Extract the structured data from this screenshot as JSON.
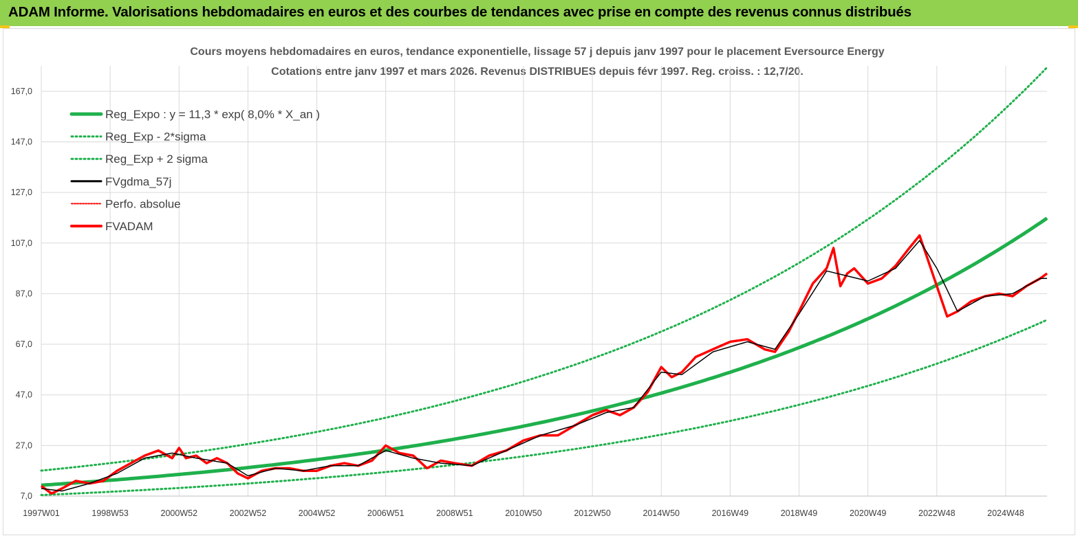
{
  "header": {
    "banner_title": "ADAM Informe. Valorisations hebdomadaires en euros et des courbes de tendances avec prise en compte des revenus connus distribués"
  },
  "colors": {
    "banner": "#92d050",
    "reg_expo": "#1fb04c",
    "sigma": "#1fb04c",
    "fvgdma": "#000000",
    "perfo": "#ff0000",
    "fvadam": "#ff0000",
    "grid": "#d9d9d9"
  },
  "chart_data": {
    "type": "line",
    "title": "Cours moyens hebdomadaires en euros, tendance exponentielle, lissage 57 j depuis janv 1997 pour le placement Eversource Energy",
    "subtitle": "Cotations entre janv 1997 et mars 2026. Revenus DISTRIBUES depuis févr 1997. Reg. croiss. : 12,7/20.",
    "ylim": [
      7,
      177
    ],
    "y_ticks": [
      "7,0",
      "27,0",
      "47,0",
      "67,0",
      "87,0",
      "107,0",
      "127,0",
      "147,0",
      "167,0"
    ],
    "x_range": [
      1997.0,
      2026.2
    ],
    "x_ticks": [
      {
        "label": "1997W01",
        "x": 1997.0
      },
      {
        "label": "1998W53",
        "x": 1999.0
      },
      {
        "label": "2000W52",
        "x": 2001.0
      },
      {
        "label": "2002W52",
        "x": 2003.0
      },
      {
        "label": "2004W52",
        "x": 2005.0
      },
      {
        "label": "2006W51",
        "x": 2007.0
      },
      {
        "label": "2008W51",
        "x": 2009.0
      },
      {
        "label": "2010W50",
        "x": 2011.0
      },
      {
        "label": "2012W50",
        "x": 2013.0
      },
      {
        "label": "2014W50",
        "x": 2015.0
      },
      {
        "label": "2016W49",
        "x": 2017.0
      },
      {
        "label": "2018W49",
        "x": 2019.0
      },
      {
        "label": "2020W49",
        "x": 2021.0
      },
      {
        "label": "2022W48",
        "x": 2023.0
      },
      {
        "label": "2024W48",
        "x": 2025.0
      }
    ],
    "legend": [
      "Reg_Expo : y = 11,3 * exp( 8,0% *  X_an )",
      "Reg_Exp - 2*sigma",
      "Reg_Exp + 2 sigma",
      "FVgdma_57j",
      "Perfo. absolue",
      "FVADAM"
    ],
    "legend_position": "top-left",
    "grid": true,
    "trend": {
      "a": 11.3,
      "rate": 0.08,
      "lower_factor": 0.656,
      "upper_factor": 1.51
    },
    "series": [
      {
        "name": "FVADAM",
        "x": [
          1997.0,
          1997.3,
          1997.6,
          1998.0,
          1998.4,
          1998.8,
          1999.2,
          1999.6,
          2000.0,
          2000.4,
          2000.8,
          2001.0,
          2001.2,
          2001.5,
          2001.8,
          2002.1,
          2002.4,
          2002.7,
          2003.0,
          2003.4,
          2003.8,
          2004.2,
          2004.6,
          2005.0,
          2005.4,
          2005.8,
          2006.2,
          2006.6,
          2007.0,
          2007.4,
          2007.8,
          2008.2,
          2008.6,
          2009.0,
          2009.5,
          2010.0,
          2010.5,
          2011.0,
          2011.5,
          2012.0,
          2012.5,
          2013.0,
          2013.4,
          2013.8,
          2014.2,
          2014.6,
          2015.0,
          2015.3,
          2015.6,
          2016.0,
          2016.5,
          2017.0,
          2017.5,
          2018.0,
          2018.3,
          2018.7,
          2019.0,
          2019.4,
          2019.8,
          2020.0,
          2020.2,
          2020.4,
          2020.6,
          2021.0,
          2021.4,
          2021.8,
          2022.2,
          2022.5,
          2022.8,
          2023.0,
          2023.3,
          2023.6,
          2024.0,
          2024.4,
          2024.8,
          2025.2,
          2025.6,
          2026.0,
          2026.2
        ],
        "y": [
          11,
          8,
          10,
          13,
          12,
          13,
          17,
          20,
          23,
          25,
          22,
          26,
          22,
          23,
          20,
          22,
          20,
          16,
          14,
          17,
          18,
          18,
          17,
          17,
          19,
          20,
          19,
          21,
          27,
          24,
          23,
          18,
          21,
          20,
          19,
          23,
          25,
          29,
          31,
          31,
          35,
          39,
          41,
          39,
          42,
          48,
          58,
          54,
          56,
          62,
          65,
          68,
          69,
          65,
          64,
          72,
          80,
          91,
          97,
          105,
          90,
          95,
          97,
          91,
          93,
          98,
          105,
          110,
          98,
          90,
          78,
          80,
          84,
          86,
          87,
          86,
          90,
          93,
          95
        ]
      },
      {
        "name": "FVgdma_57j",
        "x": [
          1997.0,
          1997.6,
          1998.4,
          1999.2,
          2000.0,
          2000.8,
          2001.5,
          2002.4,
          2003.0,
          2003.8,
          2004.6,
          2005.4,
          2006.2,
          2007.0,
          2007.8,
          2008.6,
          2009.5,
          2010.5,
          2011.5,
          2012.5,
          2013.4,
          2014.2,
          2015.0,
          2015.6,
          2016.5,
          2017.5,
          2018.3,
          2019.0,
          2019.8,
          2020.4,
          2021.0,
          2021.8,
          2022.5,
          2023.0,
          2023.6,
          2024.4,
          2025.2,
          2026.0,
          2026.2
        ],
        "y": [
          10,
          9,
          12,
          16,
          22,
          24,
          22,
          20,
          15,
          18,
          17,
          19,
          19,
          25,
          22,
          20,
          19,
          25,
          31,
          35,
          40,
          42,
          56,
          55,
          64,
          68,
          65,
          79,
          96,
          94,
          92,
          97,
          108,
          97,
          80,
          86,
          87,
          93,
          93
        ]
      }
    ]
  }
}
